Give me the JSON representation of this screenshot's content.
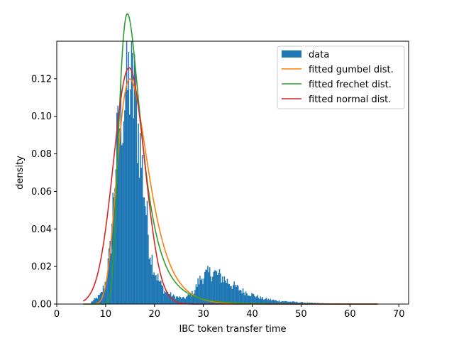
{
  "chart_data": {
    "type": "histogram",
    "xlabel": "IBC token transfer time",
    "ylabel": "density",
    "xlim": [
      0,
      72
    ],
    "ylim": [
      0,
      0.14
    ],
    "xticks": [
      0,
      10,
      20,
      30,
      40,
      50,
      60,
      70
    ],
    "yticks": [
      0.0,
      0.02,
      0.04,
      0.06,
      0.08,
      0.1,
      0.12
    ],
    "ytick_labels": [
      "0.00",
      "0.02",
      "0.04",
      "0.06",
      "0.08",
      "0.10",
      "0.12"
    ],
    "grid": false,
    "legend": {
      "position": "top-right",
      "entries": [
        "data",
        "fitted gumbel dist.",
        "fitted frechet dist.",
        "fitted normal dist."
      ]
    },
    "histogram": {
      "name": "data",
      "color": "#1f77b4",
      "bin_width": 0.2,
      "anchor_points": [
        [
          7,
          0.001
        ],
        [
          8,
          0.003
        ],
        [
          9,
          0.005
        ],
        [
          10,
          0.012
        ],
        [
          11,
          0.03
        ],
        [
          12,
          0.075
        ],
        [
          13,
          0.1
        ],
        [
          14,
          0.112
        ],
        [
          15,
          0.12
        ],
        [
          16,
          0.107
        ],
        [
          17,
          0.085
        ],
        [
          18,
          0.058
        ],
        [
          19,
          0.03
        ],
        [
          20,
          0.018
        ],
        [
          21,
          0.012
        ],
        [
          22,
          0.007
        ],
        [
          24,
          0.004
        ],
        [
          26,
          0.003
        ],
        [
          28,
          0.006
        ],
        [
          29,
          0.012
        ],
        [
          30,
          0.015
        ],
        [
          32,
          0.017
        ],
        [
          34,
          0.014
        ],
        [
          36,
          0.01
        ],
        [
          38,
          0.007
        ],
        [
          40,
          0.005
        ],
        [
          42,
          0.003
        ],
        [
          45,
          0.0018
        ],
        [
          48,
          0.0012
        ],
        [
          52,
          0.0006
        ],
        [
          56,
          0.0003
        ],
        [
          60,
          0.0002
        ],
        [
          64,
          0.0001
        ],
        [
          66,
          0
        ]
      ],
      "peak_value": 0.133
    },
    "series": [
      {
        "name": "fitted gumbel dist.",
        "type": "gumbel",
        "color": "#ff7f0e",
        "params": {
          "loc": 15.0,
          "scale": 3.07
        },
        "x_range": [
          5.4,
          65.7
        ]
      },
      {
        "name": "fitted frechet dist.",
        "type": "frechet",
        "color": "#2ca02c",
        "params": {
          "alpha": 6.15,
          "scale": 14.82,
          "loc": 0
        },
        "x_range": [
          5.4,
          65.7
        ]
      },
      {
        "name": "fitted normal dist.",
        "type": "normal",
        "color": "#d62728",
        "params": {
          "mu": 14.8,
          "sigma": 3.17
        },
        "x_range": [
          5.4,
          65.7
        ]
      }
    ]
  }
}
